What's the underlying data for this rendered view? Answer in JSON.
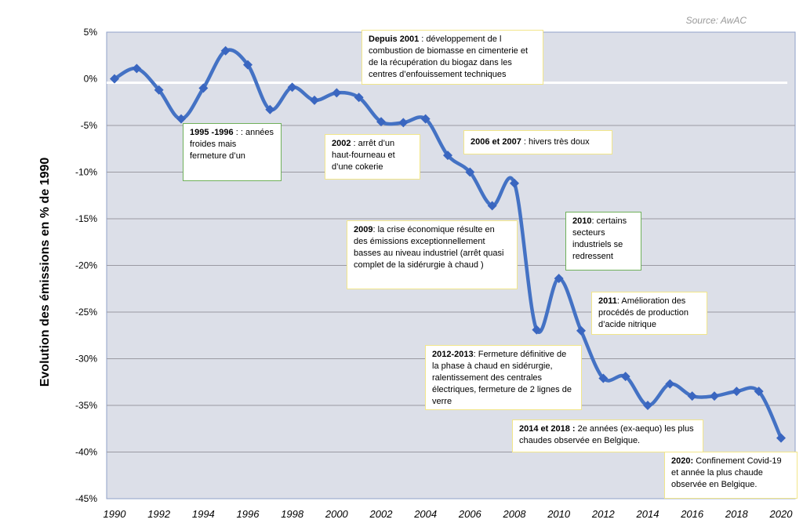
{
  "source": "Source: AwAC",
  "chart_data": {
    "type": "line",
    "title": "",
    "xlabel": "",
    "ylabel": "Evolution des émissions en % de 1990",
    "ylim": [
      -45,
      5
    ],
    "xlim": [
      1990,
      2020
    ],
    "grid": true,
    "y_ticks": [
      "5%",
      "0%",
      "-5%",
      "-10%",
      "-15%",
      "-20%",
      "-25%",
      "-30%",
      "-35%",
      "-40%",
      "-45%"
    ],
    "x_ticks": [
      "1990",
      "1992",
      "1994",
      "1996",
      "1998",
      "2000",
      "2002",
      "2004",
      "2006",
      "2008",
      "2010",
      "2012",
      "2014",
      "2016",
      "2018",
      "2020"
    ],
    "x": [
      1990,
      1991,
      1992,
      1993,
      1994,
      1995,
      1996,
      1997,
      1998,
      1999,
      2000,
      2001,
      2002,
      2003,
      2004,
      2005,
      2006,
      2007,
      2008,
      2009,
      2010,
      2011,
      2012,
      2013,
      2014,
      2015,
      2016,
      2017,
      2018,
      2019,
      2020
    ],
    "series": [
      {
        "values": [
          0,
          1.1,
          -1.2,
          -4.3,
          -1.0,
          3.0,
          1.5,
          -3.3,
          -0.9,
          -2.3,
          -1.5,
          -2.0,
          -4.6,
          -4.7,
          -4.3,
          -8.2,
          -10.0,
          -13.6,
          -11.2,
          -26.9,
          -21.4,
          -27.0,
          -32.1,
          -31.9,
          -35.0,
          -32.7,
          -34.0,
          -34.0,
          -33.5,
          -33.5,
          -38.5
        ]
      }
    ],
    "colors": {
      "line": "#4472c4",
      "marker": "#3a66c0",
      "plot_bg": "#dcdfe8",
      "zero_line": "#ffffff",
      "grid": "#9a9aa2"
    }
  },
  "annotations": [
    {
      "bold": "Depuis 2001",
      "text": " : développement de l combustion de biomasse en cimenterie et de la récupération du biogaz dans les centres d’enfouissement techniques"
    },
    {
      "bold": "1995 -1996",
      "text": " : : années froides mais fermeture d’un"
    },
    {
      "bold": "2002",
      "text": " : arrêt d’un haut-fourneau et d’une cokerie"
    },
    {
      "bold": "2006 et 2007",
      "text": " : hivers très doux"
    },
    {
      "bold": "2009",
      "text": ": la crise économique résulte en des émissions exceptionnellement basses au niveau industriel (arrêt quasi complet de la sidérurgie à chaud )"
    },
    {
      "bold": "2010",
      "text": ": certains secteurs industriels se redressent"
    },
    {
      "bold": "2011",
      "text": ": Amélioration des procédés de production d’acide nitrique"
    },
    {
      "bold": "2012-2013",
      "text": ": Fermeture définitive de la phase à chaud en sidérurgie, ralentissement des centrales électriques, fermeture de 2 lignes de verre"
    },
    {
      "bold": "2014 et 2018 :",
      "text": " 2e années (ex-aequo)  les plus chaudes observée en Belgique."
    },
    {
      "bold": "2020:",
      "text": " Confinement Covid-19 et année la plus chaude observée en Belgique."
    }
  ]
}
